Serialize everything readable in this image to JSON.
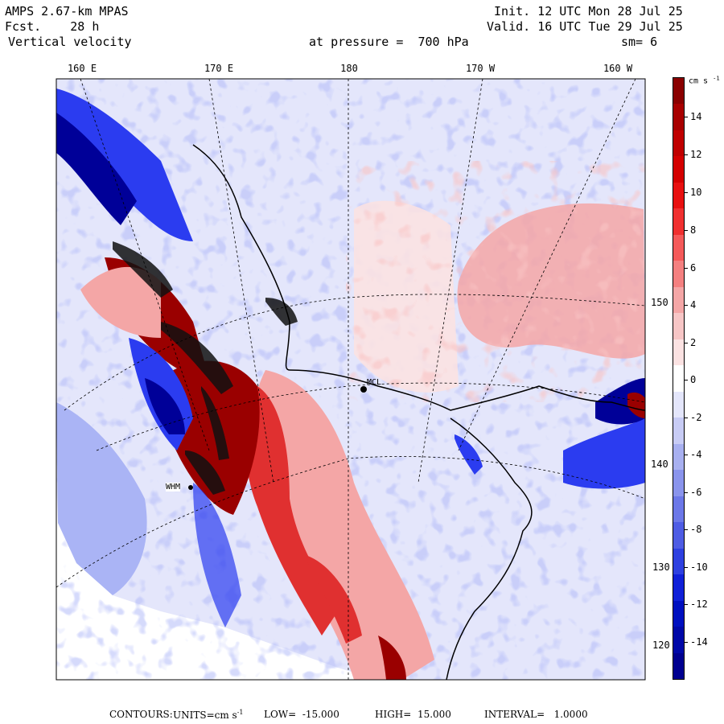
{
  "header": {
    "model": "AMPS 2.67-km MPAS",
    "fcst_label": "Fcst.",
    "fcst_value": "28 h",
    "variable": "Vertical velocity",
    "init": "Init. 12 UTC Mon 28 Jul 25",
    "valid": "Valid. 16 UTC Tue 29 Jul 25",
    "pressure_label": "at pressure =",
    "pressure_value": "700 hPa",
    "smoothing": "sm= 6"
  },
  "map": {
    "lon_labels": [
      "160 E",
      "170 E",
      "180",
      "170 W",
      "160 W"
    ],
    "lat_labels": [
      "150 W",
      "140 W",
      "130",
      "120 W"
    ],
    "stations": [
      "MCL",
      "WHM"
    ],
    "colors": {
      "neg_strong": "#000098",
      "neg_mid": "#2b3cf0",
      "neg_weak": "#aab4f5",
      "neg_faint": "#e6e8fb",
      "pos_faint": "#fbe4e4",
      "pos_weak": "#f2aaaa",
      "pos_mid": "#e03030",
      "pos_strong": "#9a0000",
      "landmass_border": "#000000"
    }
  },
  "colorbar": {
    "units_label": "cm s",
    "units_exp": "-1",
    "ticks": [
      "14",
      "12",
      "10",
      "8",
      "6",
      "4",
      "2",
      "0",
      "-2",
      "-4",
      "-6",
      "-8",
      "-10",
      "-12",
      "-14"
    ],
    "colors": [
      "#8a0000",
      "#a80000",
      "#c00000",
      "#d40000",
      "#e81010",
      "#f03030",
      "#f55a5a",
      "#f48080",
      "#f4a6a6",
      "#f7c6c6",
      "#fbe2e2",
      "#ffffff",
      "#e4e6fb",
      "#c8ccf5",
      "#a8b0f0",
      "#8a94ec",
      "#6c78e8",
      "#4e5ce4",
      "#2e40e0",
      "#1020d8",
      "#0010c0",
      "#0008a8",
      "#000090"
    ]
  },
  "footer": {
    "contours": "CONTOURS:",
    "units": "UNITS=cm s",
    "units_exp": "-1",
    "low": "LOW=  -15.000",
    "high": "HIGH=  15.000",
    "interval": "INTERVAL=   1.0000"
  }
}
